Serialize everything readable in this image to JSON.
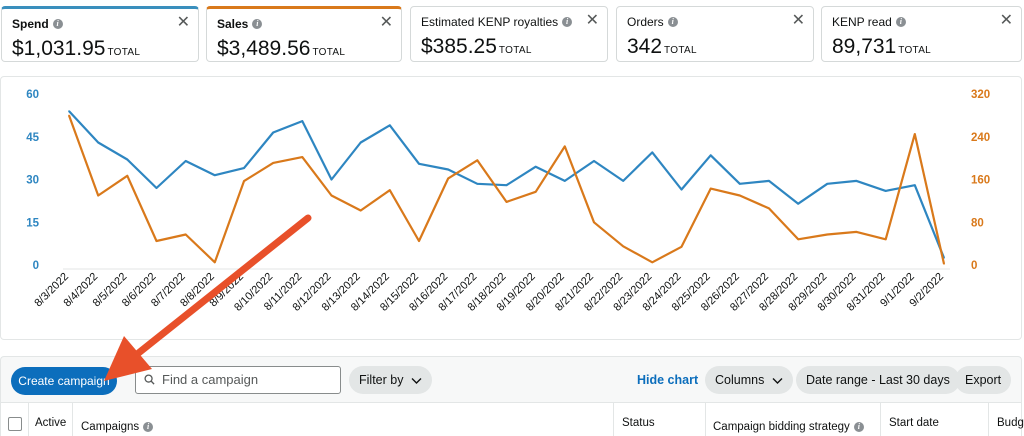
{
  "metrics": [
    {
      "title": "Spend",
      "value": "$1,031.95",
      "unit": "TOTAL"
    },
    {
      "title": "Sales",
      "value": "$3,489.56",
      "unit": "TOTAL"
    },
    {
      "title": "Estimated KENP royalties",
      "value": "$385.25",
      "unit": "TOTAL"
    },
    {
      "title": "Orders",
      "value": "342",
      "unit": "TOTAL"
    },
    {
      "title": "KENP read",
      "value": "89,731",
      "unit": "TOTAL"
    }
  ],
  "close_glyph": "✕",
  "info_glyph": "i",
  "colors": {
    "spend": "#2e86c1",
    "sales": "#d9791b",
    "primary": "#0c6ebc",
    "annotation_arrow": "#e8502a"
  },
  "icons": [
    "info-icon",
    "close-icon",
    "search-icon",
    "chevron-down-icon",
    "checkbox-icon",
    "arrow-annotation"
  ],
  "chart_data": {
    "type": "line",
    "x": [
      "8/3/2022",
      "8/4/2022",
      "8/5/2022",
      "8/6/2022",
      "8/7/2022",
      "8/8/2022",
      "8/9/2022",
      "8/10/2022",
      "8/11/2022",
      "8/12/2022",
      "8/13/2022",
      "8/14/2022",
      "8/15/2022",
      "8/16/2022",
      "8/17/2022",
      "8/18/2022",
      "8/19/2022",
      "8/20/2022",
      "8/21/2022",
      "8/22/2022",
      "8/23/2022",
      "8/24/2022",
      "8/25/2022",
      "8/26/2022",
      "8/27/2022",
      "8/28/2022",
      "8/29/2022",
      "8/30/2022",
      "8/31/2022",
      "9/1/2022",
      "9/2/2022"
    ],
    "left_axis": {
      "ticks": [
        "0",
        "15",
        "30",
        "45",
        "60"
      ],
      "ylim": [
        0,
        60
      ]
    },
    "right_axis": {
      "ticks": [
        "0",
        "80",
        "160",
        "240",
        "320"
      ],
      "ylim": [
        0,
        320
      ]
    },
    "series": [
      {
        "axis": "left",
        "color": "#2e86c1",
        "values": [
          54,
          43,
          37,
          27,
          36.5,
          31.5,
          34,
          46.5,
          50.5,
          30,
          43,
          49,
          35.5,
          33.5,
          28.5,
          28,
          34.5,
          29.5,
          36.5,
          29.5,
          39.5,
          26.5,
          38.5,
          28.5,
          29.5,
          21.5,
          28.5,
          29.5,
          26,
          28,
          2.5
        ]
      },
      {
        "axis": "right",
        "color": "#d9791b",
        "values": [
          280,
          130,
          167,
          45,
          57,
          5,
          157,
          191,
          202,
          130,
          102,
          140,
          45,
          162,
          196,
          118,
          137,
          222,
          80,
          35,
          5,
          34,
          143,
          130,
          106,
          48,
          57,
          62,
          48,
          245,
          2
        ]
      }
    ],
    "grid": false,
    "legend": "none"
  },
  "toolbar": {
    "create_label": "Create campaign",
    "search_placeholder": "Find a campaign",
    "filter_label": "Filter by",
    "hide_chart_label": "Hide chart",
    "columns_label": "Columns",
    "date_range_label": "Date range - Last 30 days",
    "export_label": "Export"
  },
  "table": {
    "headers": [
      "Active",
      "Campaigns",
      "Status",
      "Campaign bidding strategy",
      "Start date",
      "Budg"
    ]
  }
}
